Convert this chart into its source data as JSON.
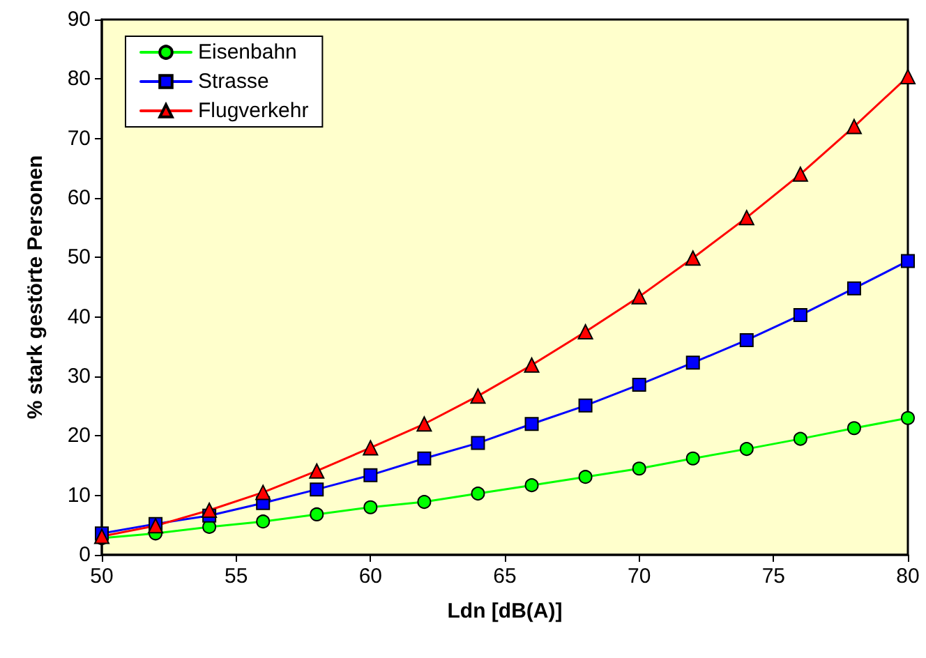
{
  "chart_data": {
    "type": "line",
    "xlabel": "Ldn [dB(A)]",
    "ylabel": "% stark gestörte Personen",
    "x": [
      50,
      52,
      54,
      56,
      58,
      60,
      62,
      64,
      66,
      68,
      70,
      72,
      74,
      76,
      78,
      80
    ],
    "series": [
      {
        "name": "Eisenbahn",
        "color": "#00ff00",
        "marker": "circle",
        "values": [
          2.8,
          3.6,
          4.7,
          5.6,
          6.8,
          8.0,
          8.9,
          10.3,
          11.7,
          13.1,
          14.5,
          16.2,
          17.8,
          19.5,
          21.3,
          23.0
        ]
      },
      {
        "name": "Strasse",
        "color": "#0000ff",
        "marker": "square",
        "values": [
          3.6,
          5.2,
          6.6,
          8.7,
          11.0,
          13.4,
          16.2,
          18.8,
          22.0,
          25.1,
          28.6,
          32.3,
          36.1,
          40.3,
          44.8,
          49.4
        ]
      },
      {
        "name": "Flugverkehr",
        "color": "#ff0000",
        "marker": "triangle",
        "values": [
          3.1,
          4.9,
          7.5,
          10.5,
          14.1,
          18.0,
          22.0,
          26.7,
          31.9,
          37.5,
          43.4,
          49.9,
          56.7,
          64.0,
          72.0,
          80.4
        ]
      }
    ],
    "xlim": [
      50,
      80
    ],
    "xticks": [
      50,
      55,
      60,
      65,
      70,
      75,
      80
    ],
    "ylim": [
      0,
      90
    ],
    "yticks": [
      0,
      10,
      20,
      30,
      40,
      50,
      60,
      70,
      80,
      90
    ],
    "grid": false,
    "legend": "top left",
    "line_style": "solid"
  }
}
